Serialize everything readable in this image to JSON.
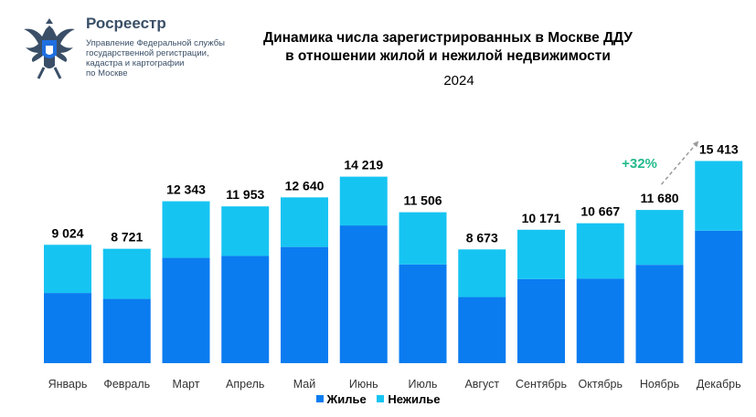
{
  "logo": {
    "brand": "Росреестр",
    "subtitle": "Управление Федеральной службы\nгосударственной регистрации,\nкадастра и картографии\nпо Москве"
  },
  "title": "Динамика числа зарегистрированных в Москве ДДУ\nв отношении жилой и нежилой недвижимости",
  "year": "2024",
  "growth_label": "+32%",
  "colors": {
    "residential": "#0a7cf0",
    "nonresidential": "#16c4f2",
    "growth": "#25b98d"
  },
  "chart_data": {
    "type": "bar",
    "stacked": true,
    "categories": [
      "Январь",
      "Февраль",
      "Март",
      "Апрель",
      "Май",
      "Июнь",
      "Июль",
      "Август",
      "Сентябрь",
      "Октябрь",
      "Ноябрь",
      "Декабрь"
    ],
    "series": [
      {
        "name": "Жилье",
        "values": [
          5350,
          4900,
          8030,
          8180,
          8860,
          10500,
          7530,
          5040,
          6410,
          6440,
          7500,
          10100
        ]
      },
      {
        "name": "Нежилье",
        "values": [
          3674,
          3821,
          4313,
          3773,
          3780,
          3719,
          3976,
          3633,
          3761,
          4227,
          4180,
          5313
        ]
      }
    ],
    "totals": [
      9024,
      8721,
      12343,
      11953,
      12640,
      14219,
      11506,
      8673,
      10171,
      10667,
      11680,
      15413
    ],
    "total_labels": [
      "9 024",
      "8 721",
      "12 343",
      "11 953",
      "12 640",
      "14 219",
      "11 506",
      "8 673",
      "10 171",
      "10 667",
      "11 680",
      "15 413"
    ],
    "ylim": [
      0,
      16000
    ],
    "legend": "bottom-center",
    "grid": false
  }
}
